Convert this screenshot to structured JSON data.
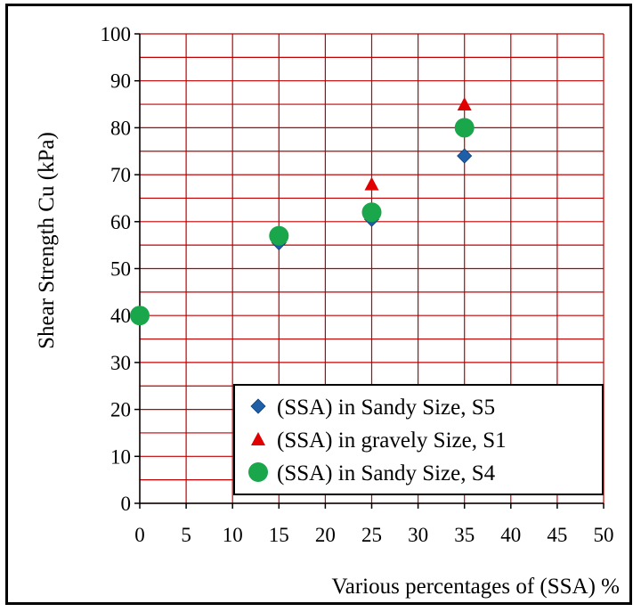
{
  "chart_data": {
    "type": "scatter",
    "xlabel": "Various percentages  of (SSA)  %",
    "ylabel": "Shear  Strength Cu   (kPa)",
    "xlim": [
      0,
      50
    ],
    "ylim": [
      0,
      100
    ],
    "xticks": [
      "0",
      "5",
      "10",
      "15",
      "20",
      "25",
      "30",
      "35",
      "40",
      "45",
      "50"
    ],
    "yticks": [
      "0",
      "10",
      "20",
      "30",
      "40",
      "50",
      "60",
      "70",
      "80",
      "90",
      "100"
    ],
    "grid": true,
    "legend_position": "bottom-right",
    "series": [
      {
        "name": "(SSA)  in Sandy  Size, S5",
        "marker": "diamond",
        "color": "#1f5fa8",
        "x": [
          15,
          25,
          35
        ],
        "y": [
          55.5,
          60.5,
          74
        ]
      },
      {
        "name": "(SSA)  in gravely  Size, S1",
        "marker": "triangle",
        "color": "#e00000",
        "x": [
          25,
          35
        ],
        "y": [
          68,
          85
        ]
      },
      {
        "name": "(SSA)  in Sandy  Size, S4",
        "marker": "circle",
        "color": "#1aa64a",
        "x": [
          0,
          15,
          25,
          35
        ],
        "y": [
          40,
          57,
          62,
          80
        ]
      }
    ]
  }
}
